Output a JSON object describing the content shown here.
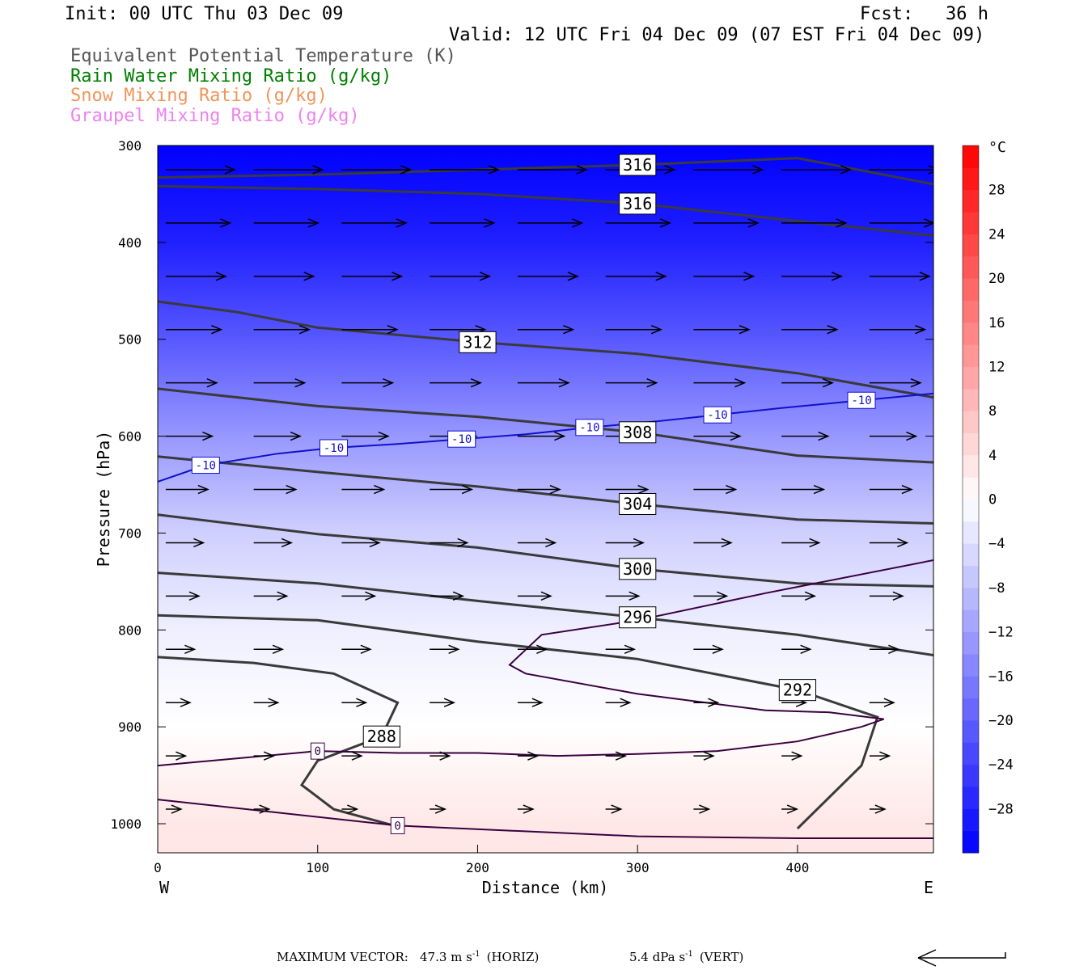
{
  "header": {
    "init": "Init: 00 UTC Thu 03 Dec 09",
    "fcst": "Fcst:   36 h",
    "valid": "Valid: 12 UTC Fri 04 Dec 09 (07 EST Fri 04 Dec 09)",
    "fields": [
      {
        "label": "Equivalent Potential Temperature (K)",
        "color": "#555555"
      },
      {
        "label": "Rain Water Mixing Ratio (g/kg)",
        "color": "#008000"
      },
      {
        "label": "Snow Mixing Ratio (g/kg)",
        "color": "#f0955a"
      },
      {
        "label": "Graupel Mixing Ratio (g/kg)",
        "color": "#ee82ee"
      }
    ]
  },
  "footer": {
    "max_vector_label": "MAXIMUM VECTOR:",
    "horiz": "47.3 m s",
    "horiz_tag": "(HORIZ)",
    "vert": "5.4 dPa s",
    "vert_tag": "(VERT)",
    "exponent": "-1"
  },
  "chart_data": {
    "type": "contour",
    "xlabel": "Distance (km)",
    "ylabel": "Pressure (hPa)",
    "xlim": [
      0,
      485
    ],
    "ylim": [
      1030,
      300
    ],
    "x_ticks": [
      0,
      100,
      200,
      300,
      400
    ],
    "y_ticks": [
      300,
      400,
      500,
      600,
      700,
      800,
      900,
      1000
    ],
    "x_left_label": "W",
    "x_right_label": "E",
    "colorbar": {
      "unit": "°C",
      "range": [
        -32,
        32
      ],
      "tick_labels": [
        28,
        24,
        20,
        16,
        12,
        8,
        4,
        0,
        -4,
        -8,
        -12,
        -16,
        -20,
        -24,
        -28
      ],
      "colors": {
        "cold": "#0000ff",
        "neutral": "#ffffff",
        "warm": "#ff0000"
      }
    },
    "temperature_field": [
      {
        "pressure": 300,
        "temperature": -32
      },
      {
        "pressure": 400,
        "temperature": -28
      },
      {
        "pressure": 500,
        "temperature": -21
      },
      {
        "pressure": 600,
        "temperature": -13
      },
      {
        "pressure": 700,
        "temperature": -6
      },
      {
        "pressure": 800,
        "temperature": -2
      },
      {
        "pressure": 900,
        "temperature": 0
      },
      {
        "pressure": 1000,
        "temperature": 3
      }
    ],
    "theta_e_contours": [
      {
        "label": "316",
        "points": [
          [
            0,
            342
          ],
          [
            100,
            345
          ],
          [
            200,
            350
          ],
          [
            300,
            360
          ],
          [
            400,
            378
          ],
          [
            485,
            393
          ]
        ]
      },
      {
        "label": "316",
        "points": [
          [
            0,
            333
          ],
          [
            100,
            330
          ],
          [
            200,
            325
          ],
          [
            300,
            320
          ],
          [
            400,
            313
          ],
          [
            485,
            340
          ]
        ]
      },
      {
        "label": "312",
        "points": [
          [
            0,
            461
          ],
          [
            50,
            472
          ],
          [
            100,
            488
          ],
          [
            200,
            503
          ],
          [
            300,
            515
          ],
          [
            400,
            535
          ],
          [
            485,
            560
          ]
        ]
      },
      {
        "label": "308",
        "points": [
          [
            0,
            551
          ],
          [
            100,
            569
          ],
          [
            200,
            580
          ],
          [
            300,
            596
          ],
          [
            400,
            620
          ],
          [
            485,
            627
          ]
        ]
      },
      {
        "label": "304",
        "points": [
          [
            0,
            621
          ],
          [
            100,
            637
          ],
          [
            200,
            652
          ],
          [
            300,
            670
          ],
          [
            400,
            686
          ],
          [
            485,
            690
          ]
        ]
      },
      {
        "label": "300",
        "points": [
          [
            0,
            681
          ],
          [
            100,
            701
          ],
          [
            200,
            715
          ],
          [
            300,
            737
          ],
          [
            400,
            752
          ],
          [
            485,
            755
          ]
        ]
      },
      {
        "label": "296",
        "points": [
          [
            0,
            741
          ],
          [
            100,
            752
          ],
          [
            200,
            770
          ],
          [
            300,
            787
          ],
          [
            400,
            805
          ],
          [
            485,
            826
          ]
        ]
      },
      {
        "label": "292",
        "points": [
          [
            0,
            785
          ],
          [
            100,
            790
          ],
          [
            200,
            812
          ],
          [
            300,
            830
          ],
          [
            400,
            862
          ],
          [
            450,
            890
          ],
          [
            440,
            940
          ],
          [
            400,
            1005
          ]
        ]
      },
      {
        "label": "288",
        "points": [
          [
            0,
            828
          ],
          [
            60,
            834
          ],
          [
            110,
            845
          ],
          [
            150,
            875
          ],
          [
            140,
            910
          ],
          [
            100,
            935
          ],
          [
            90,
            960
          ],
          [
            110,
            985
          ],
          [
            150,
            1003
          ]
        ]
      }
    ],
    "temperature_labels": [
      {
        "label": "-10",
        "points": [
          [
            0,
            647
          ],
          [
            30,
            630
          ],
          [
            75,
            618
          ],
          [
            110,
            612
          ],
          [
            150,
            608
          ],
          [
            190,
            603
          ],
          [
            230,
            598
          ],
          [
            270,
            591
          ],
          [
            310,
            585
          ],
          [
            350,
            578
          ],
          [
            390,
            571
          ],
          [
            440,
            563
          ],
          [
            485,
            556
          ]
        ]
      },
      {
        "label": "0",
        "points": [
          [
            0,
            940
          ],
          [
            100,
            925
          ],
          [
            150,
            927
          ],
          [
            200,
            927
          ],
          [
            250,
            930
          ],
          [
            300,
            928
          ],
          [
            350,
            925
          ],
          [
            400,
            915
          ],
          [
            440,
            900
          ],
          [
            454,
            892
          ],
          [
            420,
            885
          ],
          [
            380,
            883
          ],
          [
            300,
            866
          ],
          [
            230,
            845
          ],
          [
            220,
            836
          ],
          [
            240,
            805
          ],
          [
            300,
            790
          ],
          [
            380,
            762
          ],
          [
            485,
            728
          ]
        ]
      },
      {
        "label": "0",
        "points": [
          [
            0,
            975
          ],
          [
            150,
            1002
          ],
          [
            300,
            1013
          ],
          [
            400,
            1015
          ],
          [
            485,
            1015
          ]
        ]
      }
    ],
    "max_vector": {
      "horizontal": 47.3,
      "vertical": 5.4
    }
  }
}
